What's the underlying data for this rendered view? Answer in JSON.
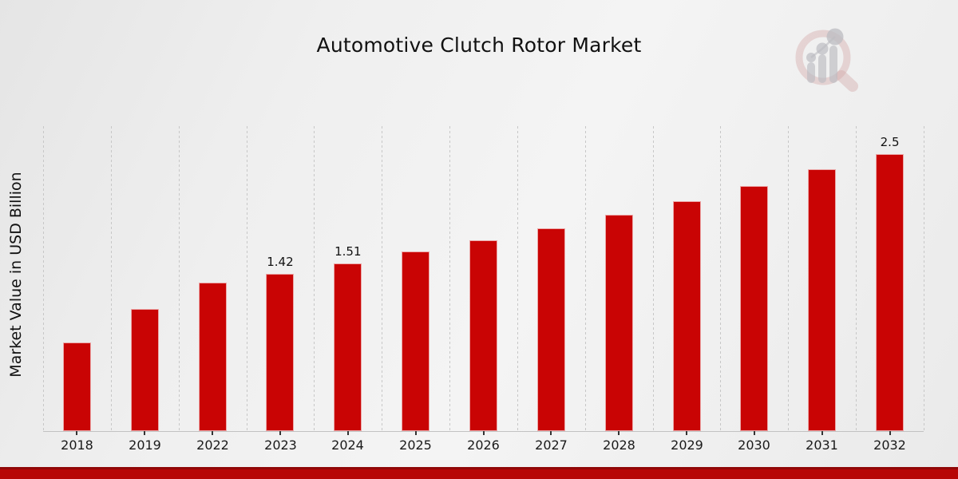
{
  "page": {
    "title": "Automotive Clutch Rotor Market"
  },
  "icons": {
    "brand_logo": "bar-chart-magnifier-watermark-logo"
  },
  "theme": {
    "bar_color": "#c90404",
    "footer_band_color": "#b70606",
    "footer_band_edge_color": "#900707",
    "gridline_color": "#c7c7c7",
    "axis_line_color": "#c2c2c2",
    "text_color": "#111111",
    "background_gray": "#efefef",
    "logo_ring_color": "#d3a9a9",
    "logo_bar_color": "#bcbcc2"
  },
  "chart_data": {
    "type": "bar",
    "title": "Automotive Clutch Rotor Market",
    "xlabel": "",
    "ylabel": "Market Value in USD Billion",
    "categories": [
      "2018",
      "2019",
      "2022",
      "2023",
      "2024",
      "2025",
      "2026",
      "2027",
      "2028",
      "2029",
      "2030",
      "2031",
      "2032"
    ],
    "values": [
      0.8,
      1.1,
      1.34,
      1.42,
      1.51,
      1.62,
      1.72,
      1.83,
      1.95,
      2.07,
      2.21,
      2.36,
      2.5
    ],
    "point_labels": [
      "",
      "",
      "",
      "1.42",
      "1.51",
      "",
      "",
      "",
      "",
      "",
      "",
      "",
      "2.5"
    ],
    "ylim": [
      0,
      2.75
    ],
    "grid": "vertical-dashed",
    "legend": null,
    "bar_color": "#c90404",
    "unit": "USD Billion"
  }
}
